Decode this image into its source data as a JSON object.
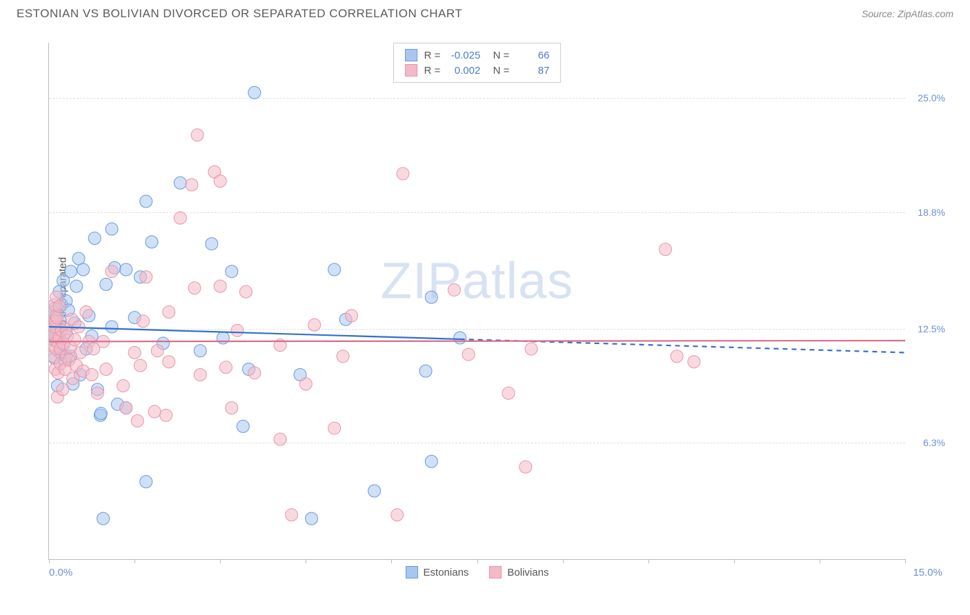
{
  "header": {
    "title": "ESTONIAN VS BOLIVIAN DIVORCED OR SEPARATED CORRELATION CHART",
    "source_prefix": "Source: ",
    "source_name": "ZipAtlas.com"
  },
  "watermark": {
    "part1": "ZIP",
    "part2": "atlas"
  },
  "chart": {
    "type": "scatter",
    "ylabel": "Divorced or Separated",
    "xlim": [
      0,
      15
    ],
    "ylim": [
      0,
      28
    ],
    "xtick_step": 1.5,
    "xlabel_min": "0.0%",
    "xlabel_max": "15.0%",
    "ygrid": [
      {
        "v": 6.3,
        "label": "6.3%"
      },
      {
        "v": 12.5,
        "label": "12.5%"
      },
      {
        "v": 18.8,
        "label": "18.8%"
      },
      {
        "v": 25.0,
        "label": "25.0%"
      }
    ],
    "marker_radius": 9,
    "marker_opacity": 0.55,
    "trend_width": 2.2,
    "series": [
      {
        "name": "Estonians",
        "legend_label": "Estonians",
        "color_fill": "#a9c6ee",
        "color_stroke": "#6699dd",
        "line_color": "#2f6fcf",
        "R": "-0.025",
        "N": "66",
        "trend": {
          "y0": 12.6,
          "y1": 11.2,
          "solid_until_x": 7.2
        },
        "points": [
          [
            0.05,
            12.4
          ],
          [
            0.06,
            12.2
          ],
          [
            0.08,
            12.8
          ],
          [
            0.08,
            11.9
          ],
          [
            0.1,
            13.6
          ],
          [
            0.1,
            10.9
          ],
          [
            0.12,
            12.0
          ],
          [
            0.12,
            13.2
          ],
          [
            0.15,
            12.6
          ],
          [
            0.15,
            9.4
          ],
          [
            0.18,
            14.5
          ],
          [
            0.2,
            11.2
          ],
          [
            0.2,
            12.9
          ],
          [
            0.22,
            13.8
          ],
          [
            0.25,
            15.1
          ],
          [
            0.25,
            11.6
          ],
          [
            0.28,
            10.8
          ],
          [
            0.3,
            14.0
          ],
          [
            0.3,
            12.3
          ],
          [
            0.34,
            13.5
          ],
          [
            0.38,
            15.6
          ],
          [
            0.38,
            11.0
          ],
          [
            0.42,
            9.5
          ],
          [
            0.45,
            12.8
          ],
          [
            0.48,
            14.8
          ],
          [
            0.52,
            16.3
          ],
          [
            0.55,
            10.0
          ],
          [
            0.6,
            15.7
          ],
          [
            0.65,
            11.4
          ],
          [
            0.7,
            13.2
          ],
          [
            0.75,
            12.1
          ],
          [
            0.8,
            17.4
          ],
          [
            0.85,
            9.2
          ],
          [
            0.9,
            7.8
          ],
          [
            0.91,
            7.9
          ],
          [
            0.95,
            2.2
          ],
          [
            1.0,
            14.9
          ],
          [
            1.1,
            17.9
          ],
          [
            1.1,
            12.6
          ],
          [
            1.15,
            15.8
          ],
          [
            1.2,
            8.4
          ],
          [
            1.35,
            15.7
          ],
          [
            1.35,
            8.2
          ],
          [
            1.5,
            13.1
          ],
          [
            1.6,
            15.3
          ],
          [
            1.7,
            4.2
          ],
          [
            1.7,
            19.4
          ],
          [
            1.8,
            17.2
          ],
          [
            2.0,
            11.7
          ],
          [
            2.3,
            20.4
          ],
          [
            2.65,
            11.3
          ],
          [
            2.85,
            17.1
          ],
          [
            3.05,
            12.0
          ],
          [
            3.2,
            15.6
          ],
          [
            3.4,
            7.2
          ],
          [
            3.5,
            10.3
          ],
          [
            3.6,
            25.3
          ],
          [
            4.4,
            10.0
          ],
          [
            4.6,
            2.2
          ],
          [
            5.0,
            15.7
          ],
          [
            5.2,
            13.0
          ],
          [
            5.7,
            3.7
          ],
          [
            6.6,
            10.2
          ],
          [
            6.7,
            14.2
          ],
          [
            6.7,
            5.3
          ],
          [
            7.2,
            12.0
          ]
        ]
      },
      {
        "name": "Bolivians",
        "legend_label": "Bolivians",
        "color_fill": "#f4b9c6",
        "color_stroke": "#e795a8",
        "line_color": "#d96c8b",
        "R": "0.002",
        "N": "87",
        "trend": {
          "y0": 11.8,
          "y1": 11.85,
          "solid_until_x": 15
        },
        "points": [
          [
            0.05,
            12.3
          ],
          [
            0.06,
            11.6
          ],
          [
            0.07,
            12.9
          ],
          [
            0.08,
            13.4
          ],
          [
            0.08,
            11.0
          ],
          [
            0.09,
            12.1
          ],
          [
            0.1,
            12.6
          ],
          [
            0.1,
            13.8
          ],
          [
            0.11,
            10.3
          ],
          [
            0.12,
            11.4
          ],
          [
            0.12,
            12.9
          ],
          [
            0.13,
            14.2
          ],
          [
            0.14,
            11.8
          ],
          [
            0.14,
            13.1
          ],
          [
            0.15,
            8.8
          ],
          [
            0.16,
            10.1
          ],
          [
            0.18,
            12.0
          ],
          [
            0.18,
            13.7
          ],
          [
            0.2,
            10.6
          ],
          [
            0.2,
            11.4
          ],
          [
            0.22,
            12.4
          ],
          [
            0.24,
            9.2
          ],
          [
            0.25,
            11.7
          ],
          [
            0.28,
            10.3
          ],
          [
            0.3,
            12.5
          ],
          [
            0.3,
            11.0
          ],
          [
            0.32,
            12.1
          ],
          [
            0.35,
            10.8
          ],
          [
            0.38,
            11.5
          ],
          [
            0.4,
            13.0
          ],
          [
            0.42,
            9.8
          ],
          [
            0.45,
            11.9
          ],
          [
            0.48,
            10.5
          ],
          [
            0.52,
            12.6
          ],
          [
            0.55,
            11.2
          ],
          [
            0.6,
            10.2
          ],
          [
            0.65,
            13.4
          ],
          [
            0.7,
            11.8
          ],
          [
            0.75,
            10.0
          ],
          [
            0.78,
            11.4
          ],
          [
            0.85,
            9.0
          ],
          [
            0.95,
            11.8
          ],
          [
            1.0,
            10.3
          ],
          [
            1.1,
            15.6
          ],
          [
            1.3,
            9.4
          ],
          [
            1.35,
            8.2
          ],
          [
            1.5,
            11.2
          ],
          [
            1.55,
            7.5
          ],
          [
            1.6,
            10.5
          ],
          [
            1.65,
            12.9
          ],
          [
            1.7,
            15.3
          ],
          [
            1.85,
            8.0
          ],
          [
            1.9,
            11.3
          ],
          [
            2.05,
            7.8
          ],
          [
            2.1,
            10.7
          ],
          [
            2.1,
            13.4
          ],
          [
            2.3,
            18.5
          ],
          [
            2.5,
            20.3
          ],
          [
            2.55,
            14.7
          ],
          [
            2.6,
            23.0
          ],
          [
            2.65,
            10.0
          ],
          [
            2.9,
            21.0
          ],
          [
            3.0,
            20.5
          ],
          [
            3.0,
            14.8
          ],
          [
            3.1,
            10.4
          ],
          [
            3.2,
            8.2
          ],
          [
            3.3,
            12.4
          ],
          [
            3.45,
            14.5
          ],
          [
            3.6,
            10.1
          ],
          [
            4.05,
            6.5
          ],
          [
            4.05,
            11.6
          ],
          [
            4.25,
            2.4
          ],
          [
            4.5,
            9.5
          ],
          [
            4.65,
            12.7
          ],
          [
            5.0,
            7.1
          ],
          [
            5.15,
            11.0
          ],
          [
            5.3,
            13.2
          ],
          [
            6.1,
            2.4
          ],
          [
            6.2,
            20.9
          ],
          [
            7.1,
            14.6
          ],
          [
            7.35,
            11.1
          ],
          [
            8.05,
            9.0
          ],
          [
            8.35,
            5.0
          ],
          [
            8.45,
            11.4
          ],
          [
            10.8,
            16.8
          ],
          [
            11.0,
            11.0
          ],
          [
            11.3,
            10.7
          ]
        ]
      }
    ]
  }
}
